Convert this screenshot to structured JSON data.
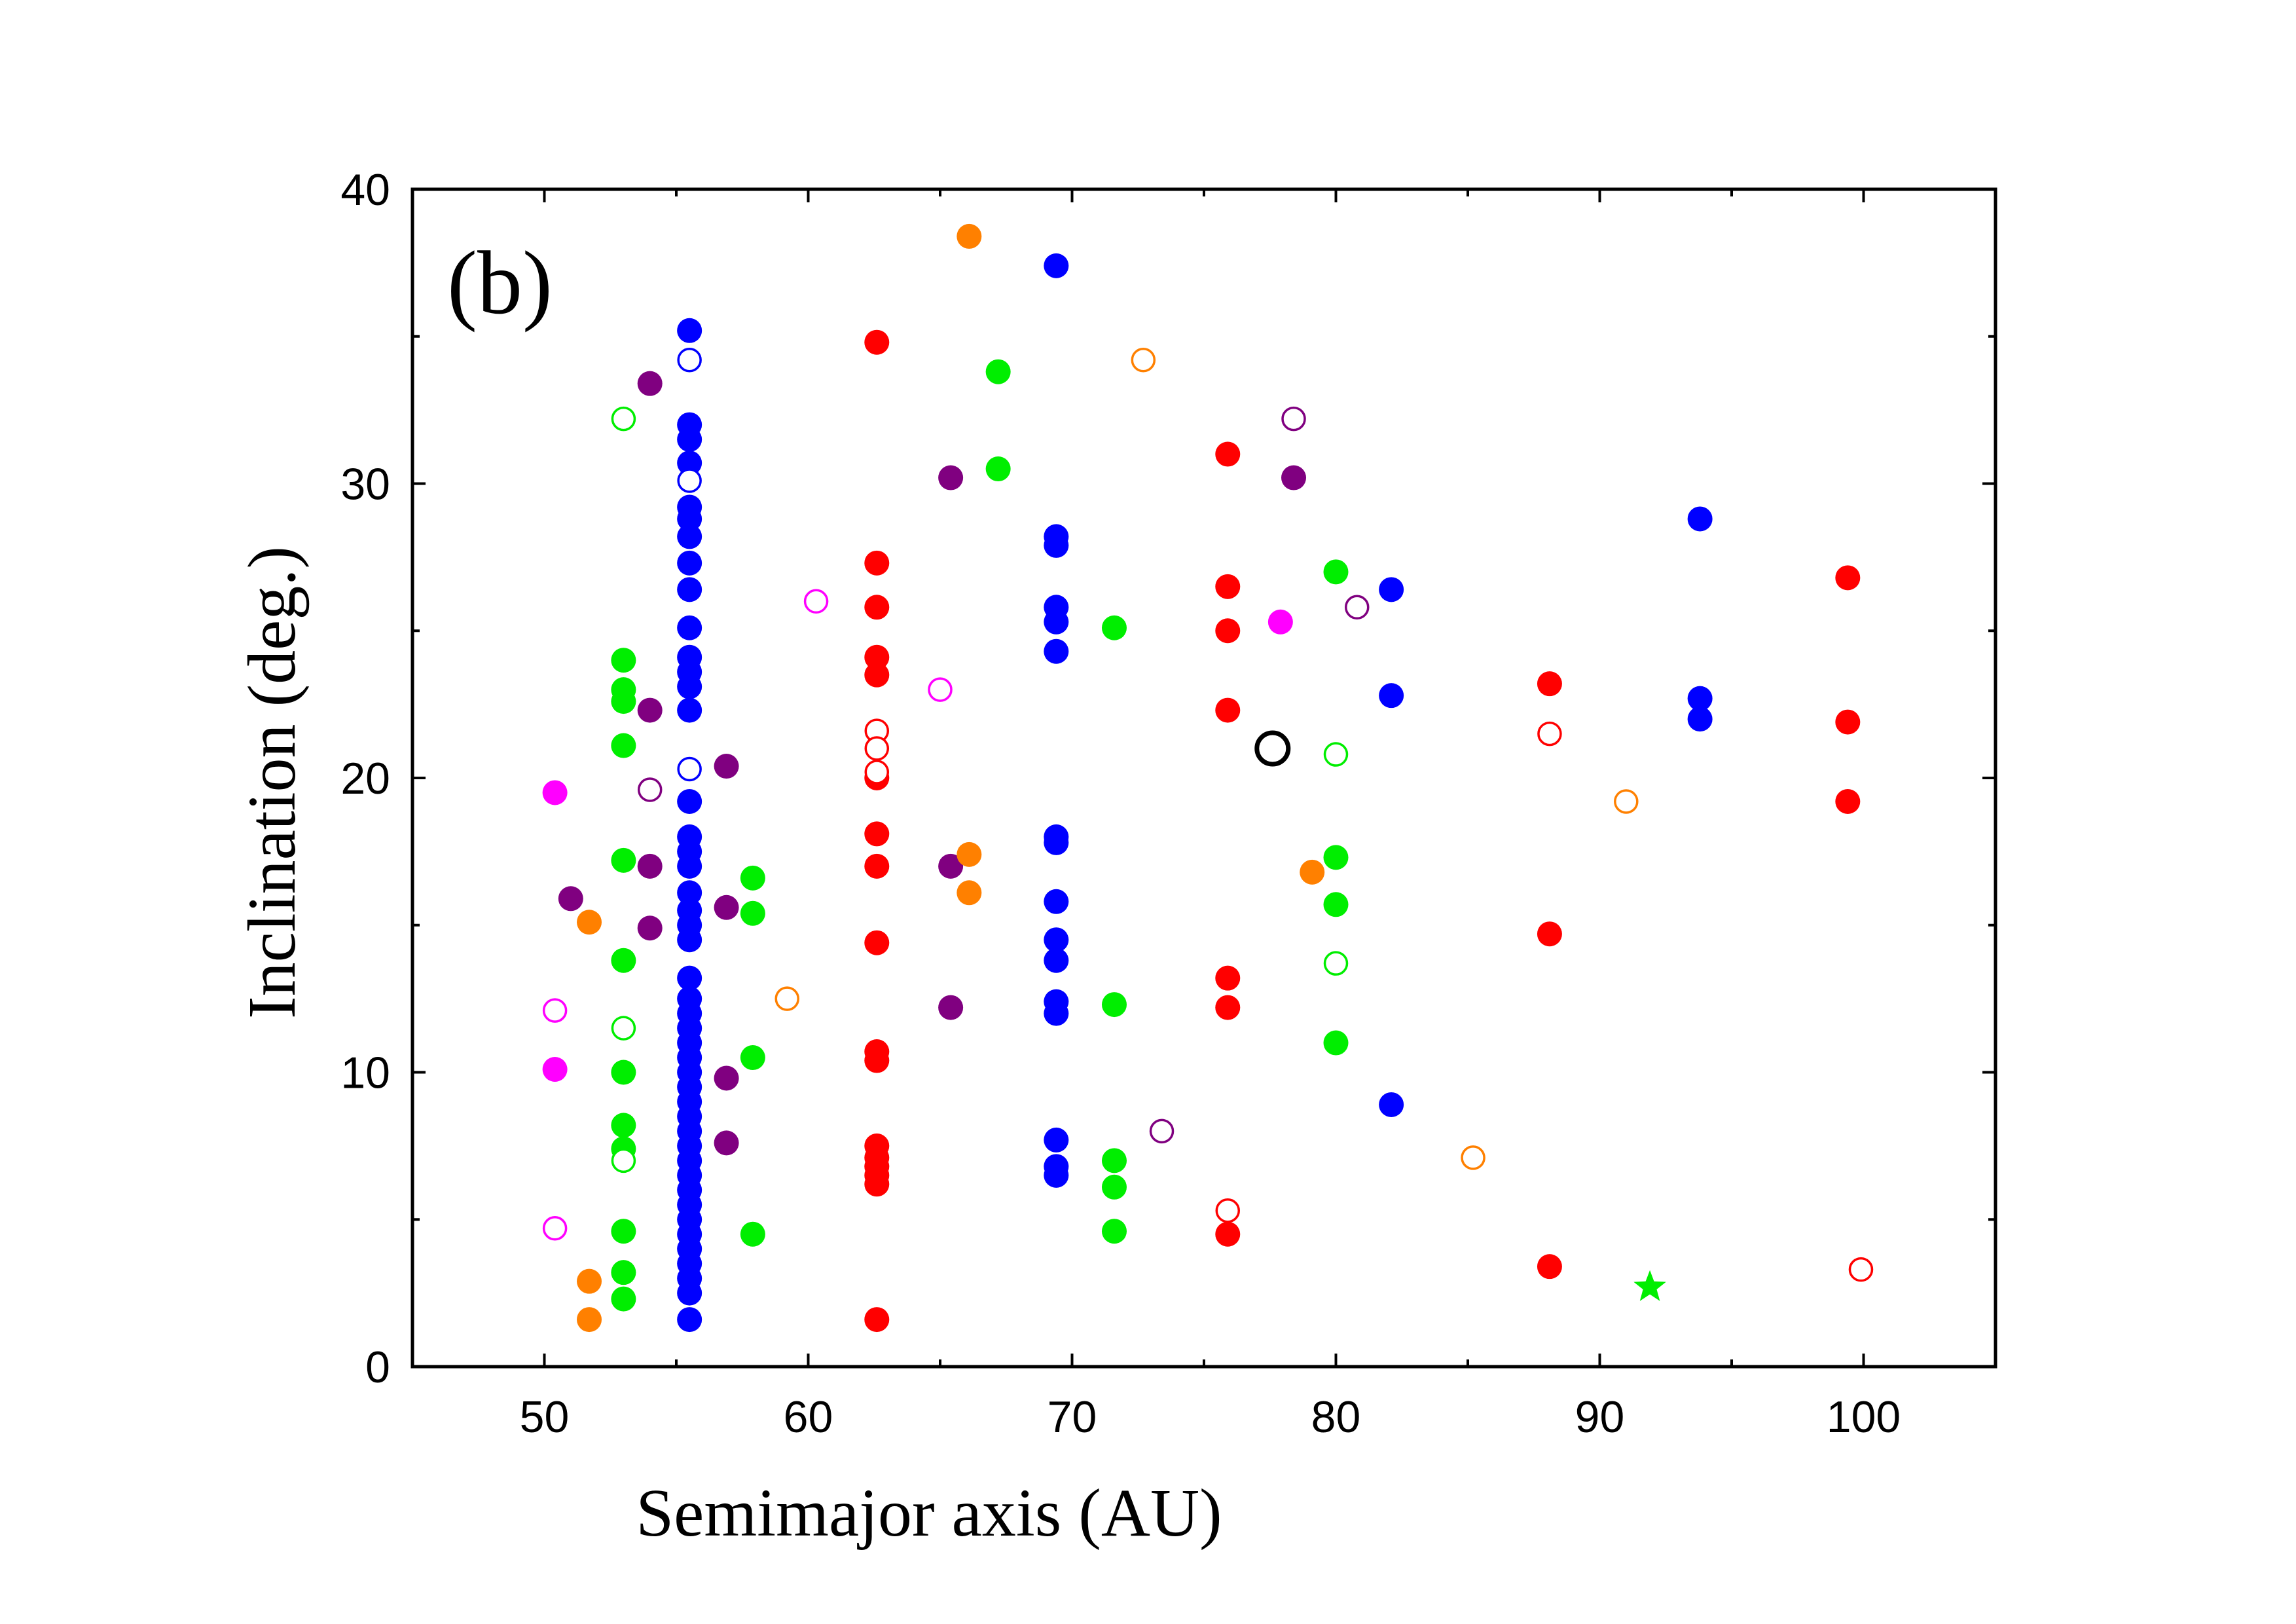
{
  "chart_data": {
    "type": "scatter",
    "panel_label": "(b)",
    "xlabel": "Semimajor axis (AU)",
    "ylabel": "Inclination (deg.)",
    "xlim": [
      45,
      105
    ],
    "ylim": [
      0,
      40
    ],
    "x_ticks": [
      50,
      60,
      70,
      80,
      90,
      100
    ],
    "x_tick_labels": [
      "50",
      "60",
      "70",
      "80",
      "90",
      "100"
    ],
    "y_ticks": [
      0,
      10,
      20,
      30,
      40
    ],
    "y_tick_labels": [
      "0",
      "10",
      "20",
      "30",
      "40"
    ],
    "grid": false,
    "legend": "none",
    "series": [
      {
        "name": "blue filled",
        "color": "#0000ff",
        "marker": "circle",
        "filled": true,
        "points": [
          [
            55.5,
            35.2
          ],
          [
            55.5,
            32.0
          ],
          [
            55.5,
            31.5
          ],
          [
            55.5,
            30.7
          ],
          [
            55.5,
            29.2
          ],
          [
            55.5,
            28.8
          ],
          [
            55.5,
            28.2
          ],
          [
            55.5,
            27.3
          ],
          [
            55.5,
            26.4
          ],
          [
            55.5,
            25.1
          ],
          [
            55.5,
            24.1
          ],
          [
            55.5,
            23.6
          ],
          [
            55.5,
            23.1
          ],
          [
            55.5,
            22.3
          ],
          [
            55.5,
            19.2
          ],
          [
            55.5,
            18.0
          ],
          [
            55.5,
            17.5
          ],
          [
            55.5,
            17.0
          ],
          [
            55.5,
            16.1
          ],
          [
            55.5,
            15.5
          ],
          [
            55.5,
            15.0
          ],
          [
            55.5,
            14.5
          ],
          [
            55.5,
            13.2
          ],
          [
            55.5,
            12.5
          ],
          [
            55.5,
            12.0
          ],
          [
            55.5,
            11.5
          ],
          [
            55.5,
            11.0
          ],
          [
            55.5,
            10.5
          ],
          [
            55.5,
            10.0
          ],
          [
            55.5,
            9.5
          ],
          [
            55.5,
            9.0
          ],
          [
            55.5,
            8.5
          ],
          [
            55.5,
            8.0
          ],
          [
            55.5,
            7.5
          ],
          [
            55.5,
            7.0
          ],
          [
            55.5,
            6.5
          ],
          [
            55.5,
            6.0
          ],
          [
            55.5,
            5.5
          ],
          [
            55.5,
            5.0
          ],
          [
            55.5,
            4.5
          ],
          [
            55.5,
            4.0
          ],
          [
            55.5,
            3.5
          ],
          [
            55.5,
            3.0
          ],
          [
            55.5,
            2.5
          ],
          [
            55.5,
            1.6
          ],
          [
            69.4,
            37.4
          ],
          [
            69.4,
            28.2
          ],
          [
            69.4,
            27.9
          ],
          [
            69.4,
            25.8
          ],
          [
            69.4,
            25.3
          ],
          [
            69.4,
            24.3
          ],
          [
            69.4,
            18.0
          ],
          [
            69.4,
            17.8
          ],
          [
            69.4,
            15.8
          ],
          [
            69.4,
            14.5
          ],
          [
            69.4,
            13.8
          ],
          [
            69.4,
            12.4
          ],
          [
            69.4,
            12.0
          ],
          [
            69.4,
            7.7
          ],
          [
            69.4,
            6.8
          ],
          [
            69.4,
            6.5
          ],
          [
            82.1,
            26.4
          ],
          [
            82.1,
            22.8
          ],
          [
            82.1,
            8.9
          ],
          [
            93.8,
            28.8
          ],
          [
            93.8,
            22.7
          ],
          [
            93.8,
            22.0
          ]
        ]
      },
      {
        "name": "blue open",
        "color": "#0000ff",
        "marker": "circle",
        "filled": false,
        "points": [
          [
            55.5,
            34.2
          ],
          [
            55.5,
            30.1
          ],
          [
            55.5,
            20.3
          ]
        ]
      },
      {
        "name": "red filled",
        "color": "#ff0000",
        "marker": "circle",
        "filled": true,
        "points": [
          [
            62.6,
            34.8
          ],
          [
            62.6,
            27.3
          ],
          [
            62.6,
            25.8
          ],
          [
            62.6,
            24.1
          ],
          [
            62.6,
            23.5
          ],
          [
            62.6,
            20.0
          ],
          [
            62.6,
            18.1
          ],
          [
            62.6,
            17.0
          ],
          [
            62.6,
            14.4
          ],
          [
            62.6,
            10.7
          ],
          [
            62.6,
            10.4
          ],
          [
            62.6,
            7.5
          ],
          [
            62.6,
            7.1
          ],
          [
            62.6,
            6.8
          ],
          [
            62.6,
            6.5
          ],
          [
            62.6,
            6.2
          ],
          [
            62.6,
            1.6
          ],
          [
            75.9,
            31.0
          ],
          [
            75.9,
            26.5
          ],
          [
            75.9,
            25.0
          ],
          [
            75.9,
            22.3
          ],
          [
            75.9,
            13.2
          ],
          [
            75.9,
            12.2
          ],
          [
            75.9,
            4.5
          ],
          [
            88.1,
            23.2
          ],
          [
            88.1,
            14.7
          ],
          [
            88.1,
            3.4
          ],
          [
            99.4,
            26.8
          ],
          [
            99.4,
            21.9
          ],
          [
            99.4,
            19.2
          ]
        ]
      },
      {
        "name": "red open",
        "color": "#ff0000",
        "marker": "circle",
        "filled": false,
        "points": [
          [
            62.6,
            21.6
          ],
          [
            62.6,
            21.0
          ],
          [
            62.6,
            20.2
          ],
          [
            75.9,
            5.3
          ],
          [
            88.1,
            21.5
          ],
          [
            99.9,
            3.3
          ]
        ]
      },
      {
        "name": "green filled",
        "color": "#00ee00",
        "marker": "circle",
        "filled": true,
        "points": [
          [
            53.0,
            24.0
          ],
          [
            53.0,
            23.0
          ],
          [
            53.0,
            22.6
          ],
          [
            53.0,
            21.1
          ],
          [
            53.0,
            17.2
          ],
          [
            53.0,
            13.8
          ],
          [
            53.0,
            10.0
          ],
          [
            53.0,
            8.2
          ],
          [
            53.0,
            7.4
          ],
          [
            53.0,
            4.6
          ],
          [
            53.0,
            3.2
          ],
          [
            53.0,
            2.3
          ],
          [
            57.9,
            16.6
          ],
          [
            57.9,
            15.4
          ],
          [
            57.9,
            10.5
          ],
          [
            57.9,
            4.5
          ],
          [
            67.2,
            33.8
          ],
          [
            67.2,
            30.5
          ],
          [
            71.6,
            25.1
          ],
          [
            71.6,
            12.3
          ],
          [
            71.6,
            7.0
          ],
          [
            71.6,
            6.1
          ],
          [
            71.6,
            4.6
          ],
          [
            80.0,
            27.0
          ],
          [
            80.0,
            17.3
          ],
          [
            80.0,
            15.7
          ],
          [
            80.0,
            11.0
          ]
        ]
      },
      {
        "name": "green open",
        "color": "#00ee00",
        "marker": "circle",
        "filled": false,
        "points": [
          [
            53.0,
            32.2
          ],
          [
            53.0,
            11.5
          ],
          [
            53.0,
            7.0
          ],
          [
            80.0,
            20.8
          ],
          [
            80.0,
            13.7
          ]
        ]
      },
      {
        "name": "purple filled",
        "color": "#800080",
        "marker": "circle",
        "filled": true,
        "points": [
          [
            54.0,
            33.4
          ],
          [
            54.0,
            22.3
          ],
          [
            54.0,
            17.0
          ],
          [
            54.0,
            14.9
          ],
          [
            51.0,
            15.9
          ],
          [
            56.9,
            20.4
          ],
          [
            56.9,
            15.6
          ],
          [
            56.9,
            9.8
          ],
          [
            56.9,
            7.6
          ],
          [
            65.4,
            30.2
          ],
          [
            65.4,
            17.0
          ],
          [
            65.4,
            12.2
          ],
          [
            78.4,
            30.2
          ]
        ]
      },
      {
        "name": "purple open",
        "color": "#800080",
        "marker": "circle",
        "filled": false,
        "points": [
          [
            54.0,
            19.6
          ],
          [
            73.4,
            8.0
          ],
          [
            78.4,
            32.2
          ],
          [
            80.8,
            25.8
          ]
        ]
      },
      {
        "name": "magenta filled",
        "color": "#ff00ff",
        "marker": "circle",
        "filled": true,
        "points": [
          [
            50.4,
            19.5
          ],
          [
            50.4,
            10.1
          ],
          [
            77.9,
            25.3
          ]
        ]
      },
      {
        "name": "magenta open",
        "color": "#ff00ff",
        "marker": "circle",
        "filled": false,
        "points": [
          [
            50.4,
            12.1
          ],
          [
            50.4,
            4.7
          ],
          [
            60.3,
            26.0
          ],
          [
            65.0,
            23.0
          ]
        ]
      },
      {
        "name": "orange filled",
        "color": "#ff8000",
        "marker": "circle",
        "filled": true,
        "points": [
          [
            51.7,
            15.1
          ],
          [
            51.7,
            2.9
          ],
          [
            51.7,
            1.6
          ],
          [
            66.1,
            38.4
          ],
          [
            66.1,
            17.4
          ],
          [
            66.1,
            16.1
          ],
          [
            79.1,
            16.8
          ]
        ]
      },
      {
        "name": "orange open",
        "color": "#ff8000",
        "marker": "circle",
        "filled": false,
        "points": [
          [
            59.2,
            12.5
          ],
          [
            72.7,
            34.2
          ],
          [
            85.2,
            7.1
          ],
          [
            91.0,
            19.2
          ]
        ]
      },
      {
        "name": "black open (large)",
        "color": "#000000",
        "marker": "circle",
        "filled": false,
        "large": true,
        "points": [
          [
            77.6,
            21.0
          ]
        ]
      },
      {
        "name": "green star",
        "color": "#00ee00",
        "marker": "star",
        "filled": true,
        "points": [
          [
            91.9,
            2.7
          ]
        ]
      }
    ]
  }
}
